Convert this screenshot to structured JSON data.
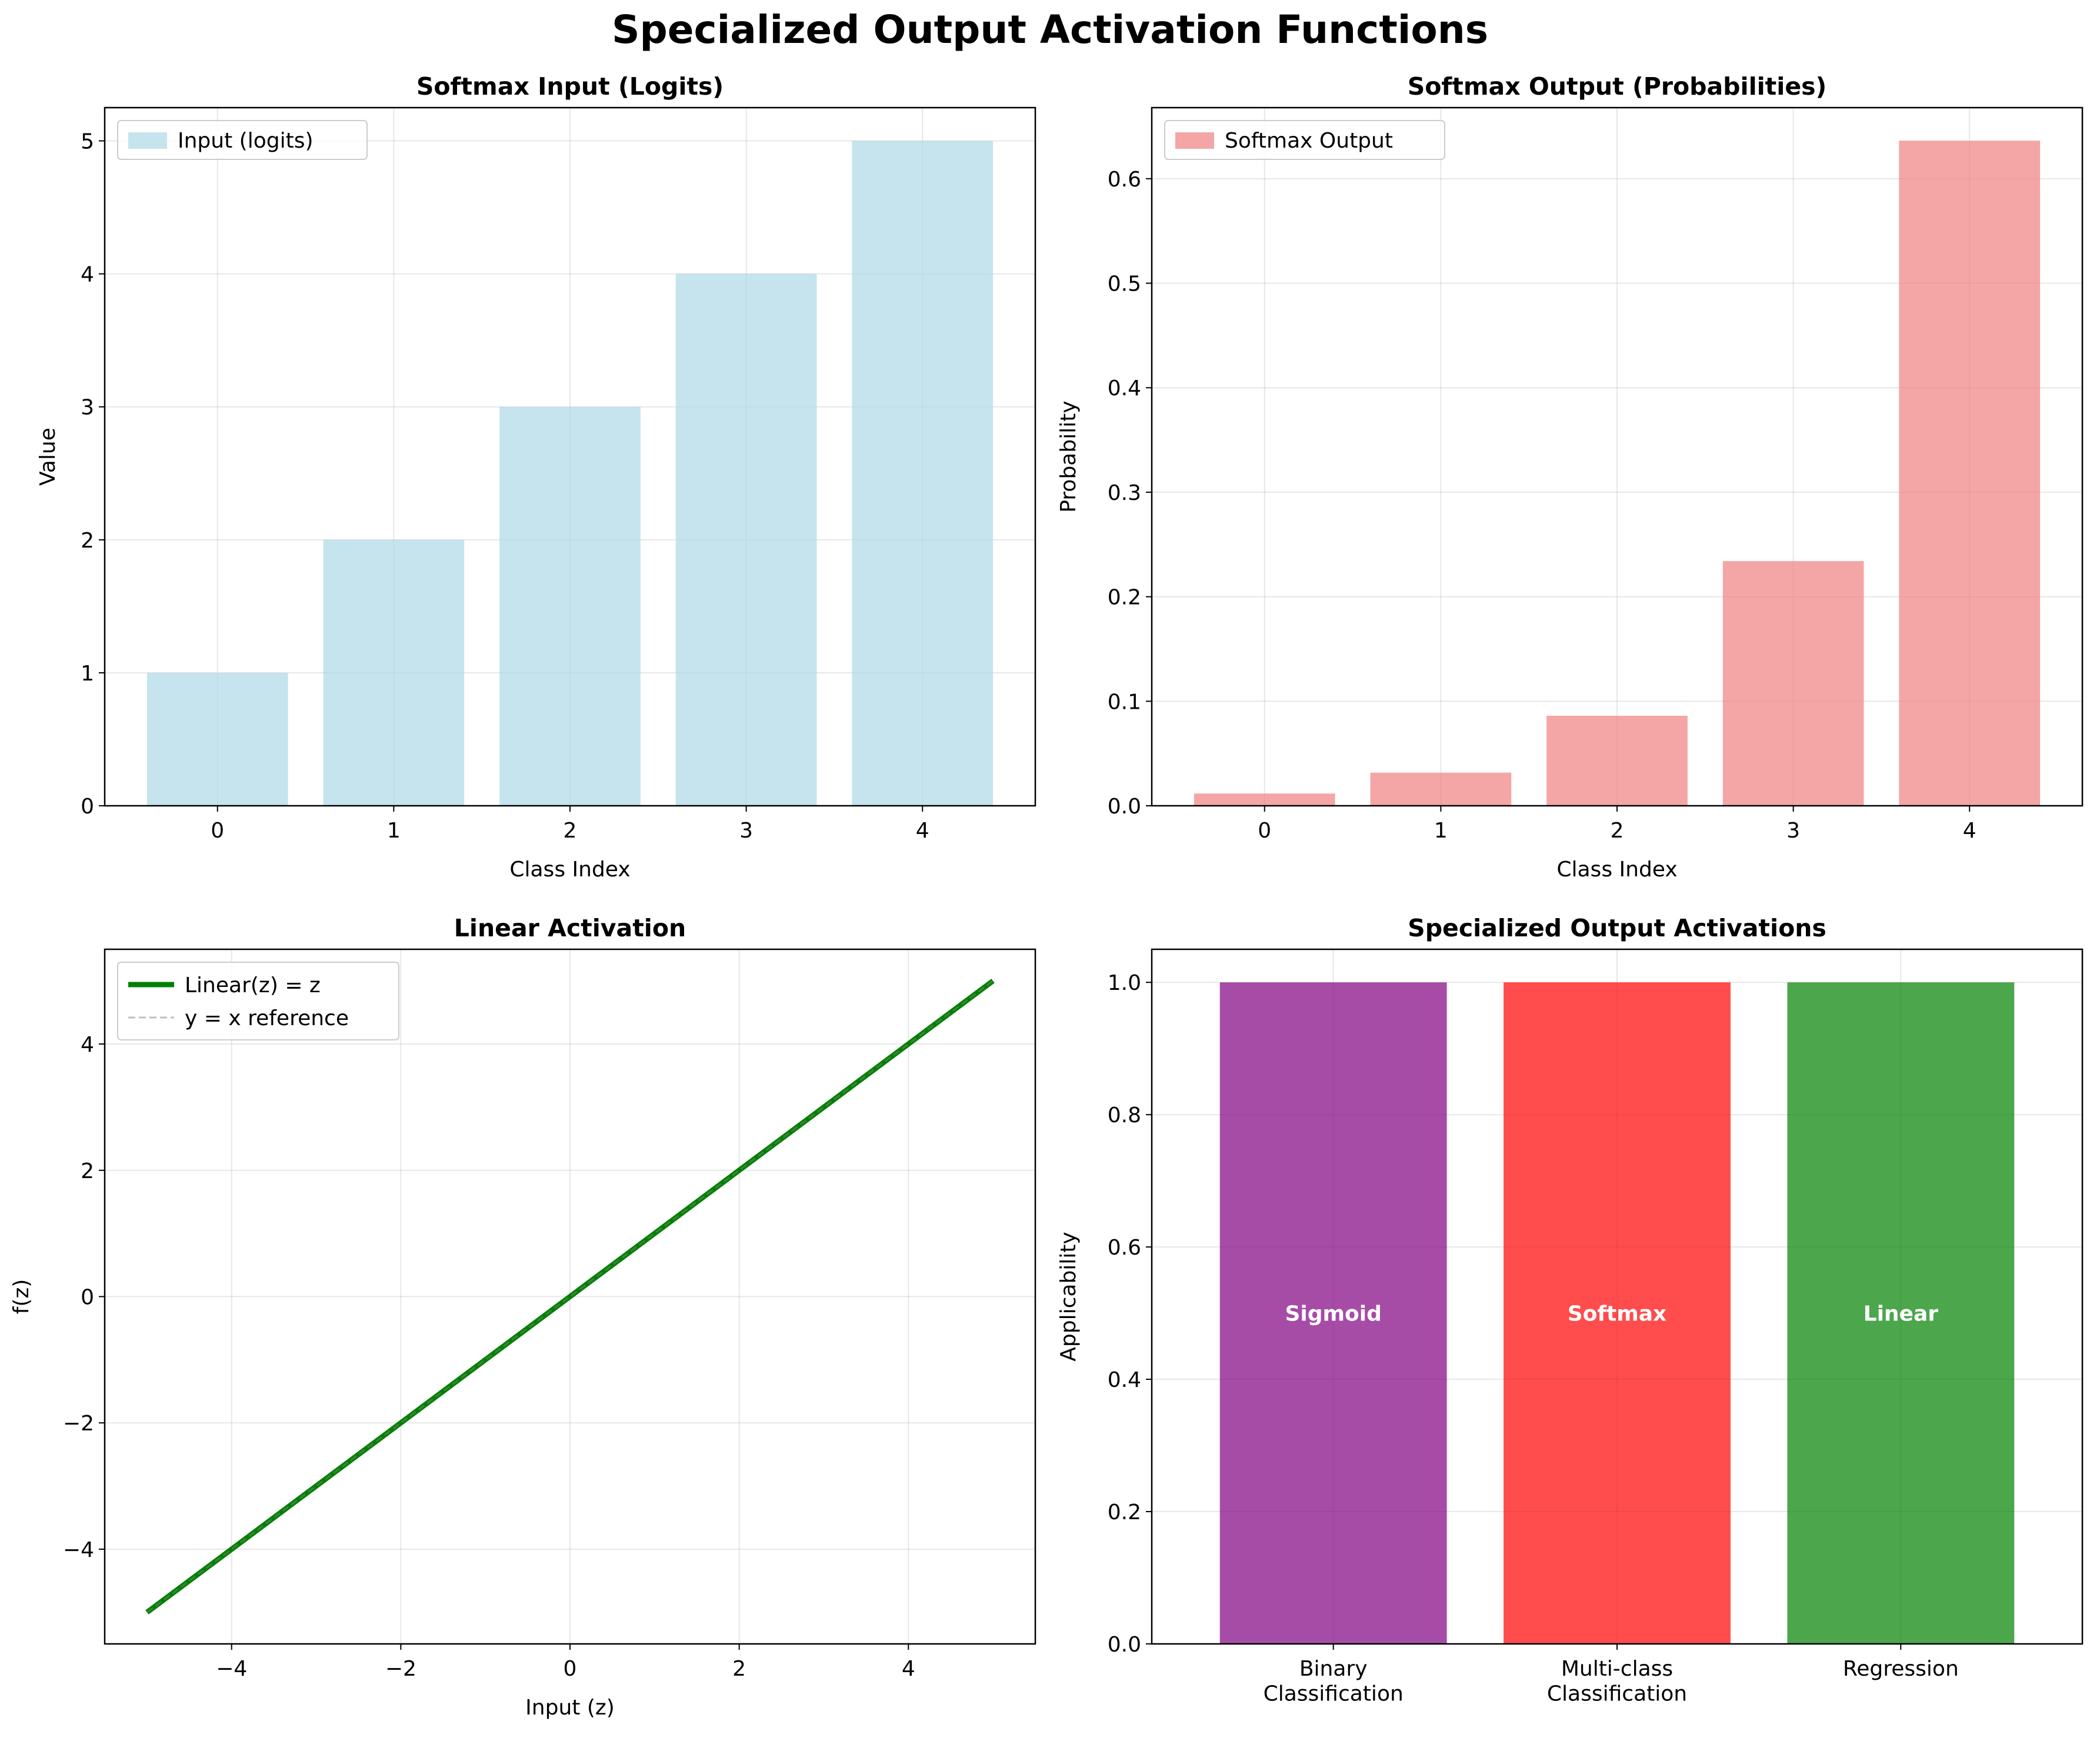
{
  "figure": {
    "suptitle": "Specialized Output Activation Functions"
  },
  "chart_data": [
    {
      "id": "softmax-input",
      "type": "bar",
      "title": "Softmax Input (Logits)",
      "xlabel": "Class Index",
      "ylabel": "Value",
      "categories": [
        "0",
        "1",
        "2",
        "3",
        "4"
      ],
      "values": [
        1,
        2,
        3,
        4,
        5
      ],
      "ylim": [
        0,
        5.25
      ],
      "yticks": [
        0,
        1,
        2,
        3,
        4,
        5
      ],
      "ytick_labels": [
        "0",
        "1",
        "2",
        "3",
        "4",
        "5"
      ],
      "series_label": "Input (logits)",
      "color": "#add8e6",
      "opacity": 0.7,
      "grid": true,
      "legend": "top-left"
    },
    {
      "id": "softmax-output",
      "type": "bar",
      "title": "Softmax Output (Probabilities)",
      "xlabel": "Class Index",
      "ylabel": "Probability",
      "categories": [
        "0",
        "1",
        "2",
        "3",
        "4"
      ],
      "values": [
        0.0117,
        0.0317,
        0.0861,
        0.2341,
        0.6364
      ],
      "ylim": [
        0,
        0.668
      ],
      "yticks": [
        0,
        0.1,
        0.2,
        0.3,
        0.4,
        0.5,
        0.6
      ],
      "ytick_labels": [
        "0.0",
        "0.1",
        "0.2",
        "0.3",
        "0.4",
        "0.5",
        "0.6"
      ],
      "series_label": "Softmax Output",
      "color": "#f08080",
      "opacity": 0.7,
      "grid": true,
      "legend": "top-left"
    },
    {
      "id": "linear-activation",
      "type": "line",
      "title": "Linear Activation",
      "xlabel": "Input (z)",
      "ylabel": "f(z)",
      "xlim": [
        -5.5,
        5.5
      ],
      "ylim": [
        -5.5,
        5.5
      ],
      "xticks": [
        -4,
        -2,
        0,
        2,
        4
      ],
      "xtick_labels": [
        "−4",
        "−2",
        "0",
        "2",
        "4"
      ],
      "yticks": [
        -4,
        -2,
        0,
        2,
        4
      ],
      "ytick_labels": [
        "−4",
        "−2",
        "0",
        "2",
        "4"
      ],
      "series": [
        {
          "name": "Linear(z) = z",
          "x": [
            -5,
            5
          ],
          "y": [
            -5,
            5
          ],
          "color": "#008000",
          "style": "solid"
        },
        {
          "name": "y = x reference",
          "x": [
            -5,
            5
          ],
          "y": [
            -5,
            5
          ],
          "color": "#808080",
          "style": "dashed"
        }
      ],
      "grid": true,
      "legend": "top-left"
    },
    {
      "id": "specialized-output",
      "type": "bar",
      "title": "Specialized Output Activations",
      "xlabel": "",
      "ylabel": "Applicability",
      "categories": [
        "Binary\nClassification",
        "Multi-class\nClassification",
        "Regression"
      ],
      "values": [
        1,
        1,
        1
      ],
      "bar_labels": [
        "Sigmoid",
        "Softmax",
        "Linear"
      ],
      "colors": [
        "#800080",
        "#ff0000",
        "#008000"
      ],
      "opacity": 0.7,
      "ylim": [
        0,
        1.05
      ],
      "yticks": [
        0,
        0.2,
        0.4,
        0.6,
        0.8,
        1.0
      ],
      "ytick_labels": [
        "0.0",
        "0.2",
        "0.4",
        "0.6",
        "0.8",
        "1.0"
      ],
      "grid": true
    }
  ]
}
